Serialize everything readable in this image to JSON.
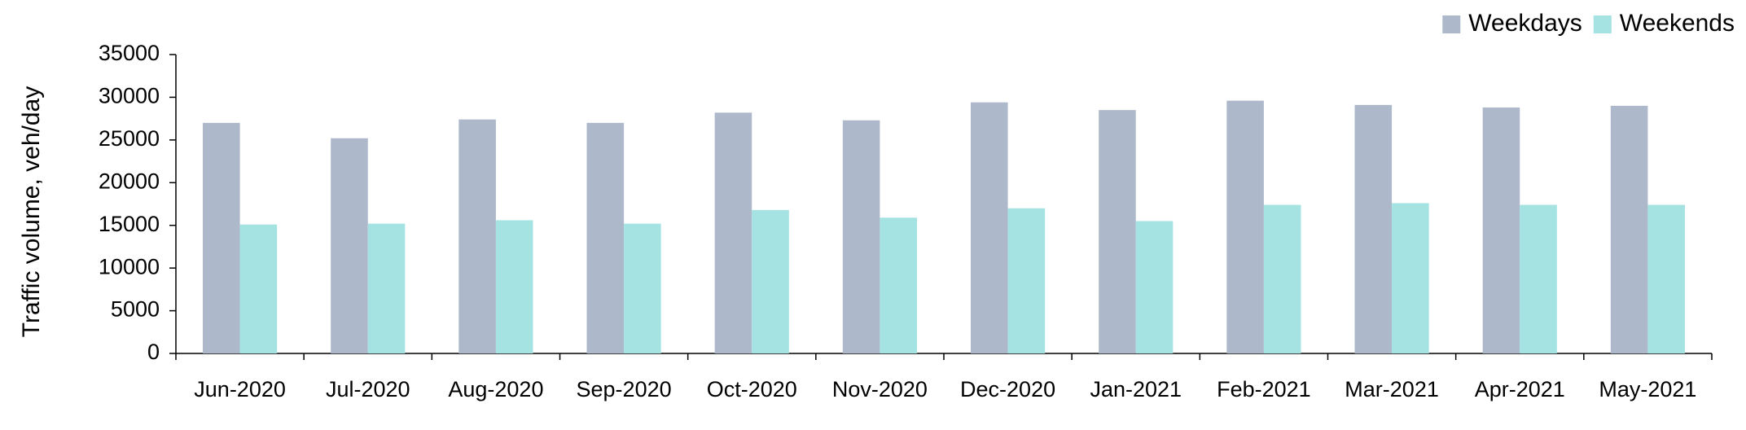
{
  "chart_data": {
    "type": "bar",
    "y_label": "Traffic volume, veh/day",
    "categories": [
      "Jun-2020",
      "Jul-2020",
      "Aug-2020",
      "Sep-2020",
      "Oct-2020",
      "Nov-2020",
      "Dec-2020",
      "Jan-2021",
      "Feb-2021",
      "Mar-2021",
      "Apr-2021",
      "May-2021"
    ],
    "series": [
      {
        "name": "Weekdays",
        "color": "#adb9ca",
        "values": [
          27000,
          25200,
          27400,
          27000,
          28200,
          27300,
          29400,
          28500,
          29600,
          29100,
          28800,
          29000
        ]
      },
      {
        "name": "Weekends",
        "color": "#a5e3e3",
        "values": [
          15100,
          15200,
          15600,
          15200,
          16800,
          15900,
          17000,
          15500,
          17400,
          17600,
          17400,
          17400
        ]
      }
    ],
    "ylim": [
      0,
      35000
    ],
    "yticks": [
      0,
      5000,
      10000,
      15000,
      20000,
      25000,
      30000,
      35000
    ],
    "legend": "top-right"
  }
}
